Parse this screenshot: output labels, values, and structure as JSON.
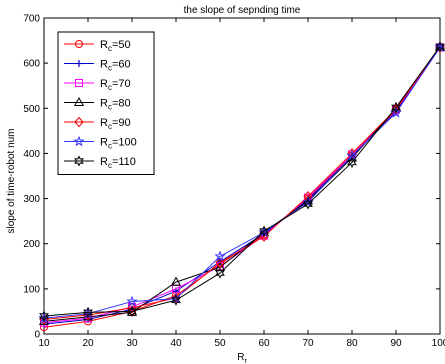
{
  "chart_data": {
    "type": "line",
    "title": "the slope of sepnding time",
    "xlabel": "R",
    "xlabel_sub": "r",
    "ylabel": "slope of time-robot num",
    "xlim": [
      10,
      100
    ],
    "ylim": [
      0,
      700
    ],
    "xticks": [
      "10",
      "20",
      "30",
      "40",
      "50",
      "60",
      "70",
      "80",
      "90",
      "100"
    ],
    "yticks": [
      "0",
      "100",
      "200",
      "300",
      "400",
      "500",
      "600",
      "700"
    ],
    "grid": false,
    "legend_position": "top-left",
    "series": [
      {
        "name": "R_c=50",
        "label_main": "R",
        "label_sub": "c",
        "label_rest": "=50",
        "color": "#ff0000",
        "marker": "circle",
        "x": [
          10,
          20,
          30,
          40,
          50,
          60,
          70,
          80,
          90,
          100
        ],
        "y": [
          15,
          28,
          50,
          85,
          155,
          220,
          300,
          395,
          495,
          635
        ]
      },
      {
        "name": "R_c=60",
        "label_main": "R",
        "label_sub": "c",
        "label_rest": "=60",
        "color": "#0000cc",
        "marker": "plus",
        "x": [
          10,
          20,
          30,
          40,
          50,
          60,
          70,
          80,
          90,
          100
        ],
        "y": [
          22,
          32,
          55,
          95,
          160,
          222,
          298,
          393,
          492,
          635
        ]
      },
      {
        "name": "R_c=70",
        "label_main": "R",
        "label_sub": "c",
        "label_rest": "=70",
        "color": "#ff00ff",
        "marker": "square",
        "x": [
          10,
          20,
          30,
          40,
          50,
          60,
          70,
          80,
          90,
          100
        ],
        "y": [
          25,
          35,
          60,
          100,
          150,
          218,
          302,
          398,
          497,
          635
        ]
      },
      {
        "name": "R_c=80",
        "label_main": "R",
        "label_sub": "c",
        "label_rest": "=80",
        "color": "#000000",
        "marker": "triangle",
        "x": [
          10,
          20,
          30,
          40,
          50,
          60,
          70,
          80,
          90,
          100
        ],
        "y": [
          28,
          38,
          48,
          115,
          148,
          225,
          295,
          390,
          500,
          635
        ]
      },
      {
        "name": "R_c=90",
        "label_main": "R",
        "label_sub": "c",
        "label_rest": "=90",
        "color": "#ff0000",
        "marker": "diamond",
        "x": [
          10,
          20,
          30,
          40,
          50,
          60,
          70,
          80,
          90,
          100
        ],
        "y": [
          32,
          42,
          58,
          80,
          158,
          216,
          305,
          400,
          498,
          635
        ]
      },
      {
        "name": "R_c=100",
        "label_main": "R",
        "label_sub": "c",
        "label_rest": "=100",
        "color": "#3333ff",
        "marker": "star",
        "x": [
          10,
          20,
          30,
          40,
          50,
          60,
          70,
          80,
          90,
          100
        ],
        "y": [
          35,
          45,
          72,
          78,
          172,
          225,
          292,
          395,
          490,
          635
        ]
      },
      {
        "name": "R_c=110",
        "label_main": "R",
        "label_sub": "c",
        "label_rest": "=110",
        "color": "#000000",
        "marker": "hexagram",
        "x": [
          10,
          20,
          30,
          40,
          50,
          60,
          70,
          80,
          90,
          100
        ],
        "y": [
          40,
          48,
          50,
          75,
          135,
          228,
          288,
          380,
          502,
          637
        ]
      }
    ]
  }
}
